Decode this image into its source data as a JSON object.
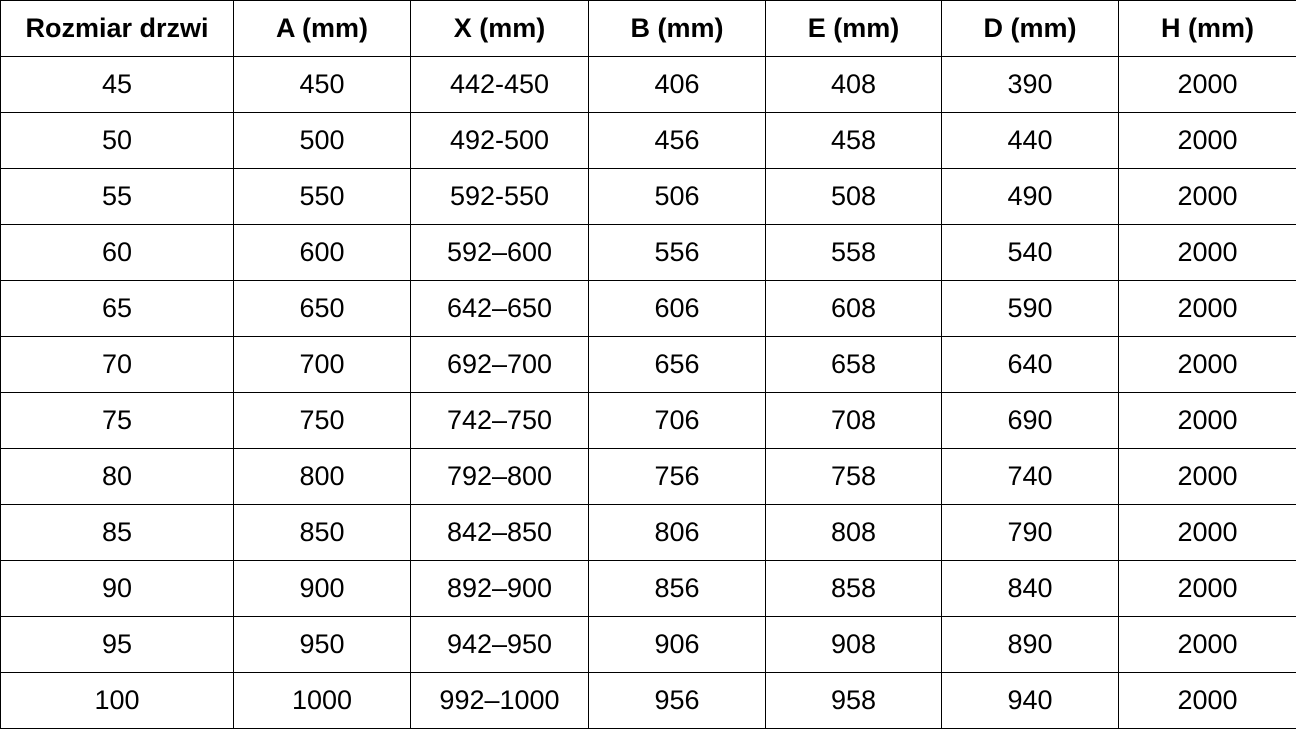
{
  "table": {
    "title": "door-size-dimension-table",
    "colors": {
      "border": "#000000",
      "text": "#000000",
      "background": "#ffffff"
    },
    "headers": [
      "Rozmiar drzwi",
      "A (mm)",
      "X (mm)",
      "B (mm)",
      "E (mm)",
      "D (mm)",
      "H (mm)"
    ],
    "column_keys": [
      "rozmiar-drzwi",
      "a-mm",
      "x-mm",
      "b-mm",
      "e-mm",
      "d-mm",
      "h-mm"
    ],
    "rows": [
      [
        "45",
        "450",
        "442-450",
        "406",
        "408",
        "390",
        "2000"
      ],
      [
        "50",
        "500",
        "492-500",
        "456",
        "458",
        "440",
        "2000"
      ],
      [
        "55",
        "550",
        "592-550",
        "506",
        "508",
        "490",
        "2000"
      ],
      [
        "60",
        "600",
        "592–600",
        "556",
        "558",
        "540",
        "2000"
      ],
      [
        "65",
        "650",
        "642–650",
        "606",
        "608",
        "590",
        "2000"
      ],
      [
        "70",
        "700",
        "692–700",
        "656",
        "658",
        "640",
        "2000"
      ],
      [
        "75",
        "750",
        "742–750",
        "706",
        "708",
        "690",
        "2000"
      ],
      [
        "80",
        "800",
        "792–800",
        "756",
        "758",
        "740",
        "2000"
      ],
      [
        "85",
        "850",
        "842–850",
        "806",
        "808",
        "790",
        "2000"
      ],
      [
        "90",
        "900",
        "892–900",
        "856",
        "858",
        "840",
        "2000"
      ],
      [
        "95",
        "950",
        "942–950",
        "906",
        "908",
        "890",
        "2000"
      ],
      [
        "100",
        "1000",
        "992–1000",
        "956",
        "958",
        "940",
        "2000"
      ]
    ]
  }
}
